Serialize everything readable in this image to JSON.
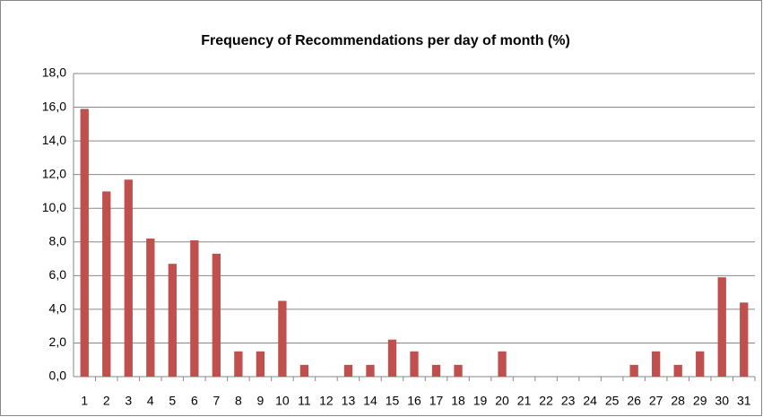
{
  "chart_data": {
    "type": "bar",
    "title": "Frequency of Recommendations per day of month (%)",
    "categories": [
      "1",
      "2",
      "3",
      "4",
      "5",
      "6",
      "7",
      "8",
      "9",
      "10",
      "11",
      "12",
      "13",
      "14",
      "15",
      "16",
      "17",
      "18",
      "19",
      "20",
      "21",
      "22",
      "23",
      "24",
      "25",
      "26",
      "27",
      "28",
      "29",
      "30",
      "31"
    ],
    "values": [
      15.9,
      11.0,
      11.7,
      8.2,
      6.7,
      8.1,
      7.3,
      1.5,
      1.5,
      4.5,
      0.7,
      0,
      0.7,
      0.7,
      2.2,
      1.5,
      0.7,
      0.7,
      0,
      1.5,
      0,
      0,
      0,
      0,
      0,
      0.7,
      1.5,
      0.7,
      1.5,
      5.9,
      4.4
    ],
    "color": "#c0504d",
    "ylim": [
      0,
      18
    ],
    "yticks": [
      {
        "value": 0,
        "label": "0,0"
      },
      {
        "value": 2,
        "label": "2,0"
      },
      {
        "value": 4,
        "label": "4,0"
      },
      {
        "value": 6,
        "label": "6,0"
      },
      {
        "value": 8,
        "label": "8,0"
      },
      {
        "value": 10,
        "label": "10,0"
      },
      {
        "value": 12,
        "label": "12,0"
      },
      {
        "value": 14,
        "label": "14,0"
      },
      {
        "value": 16,
        "label": "16,0"
      },
      {
        "value": 18,
        "label": "18,0"
      }
    ],
    "grid": true
  }
}
